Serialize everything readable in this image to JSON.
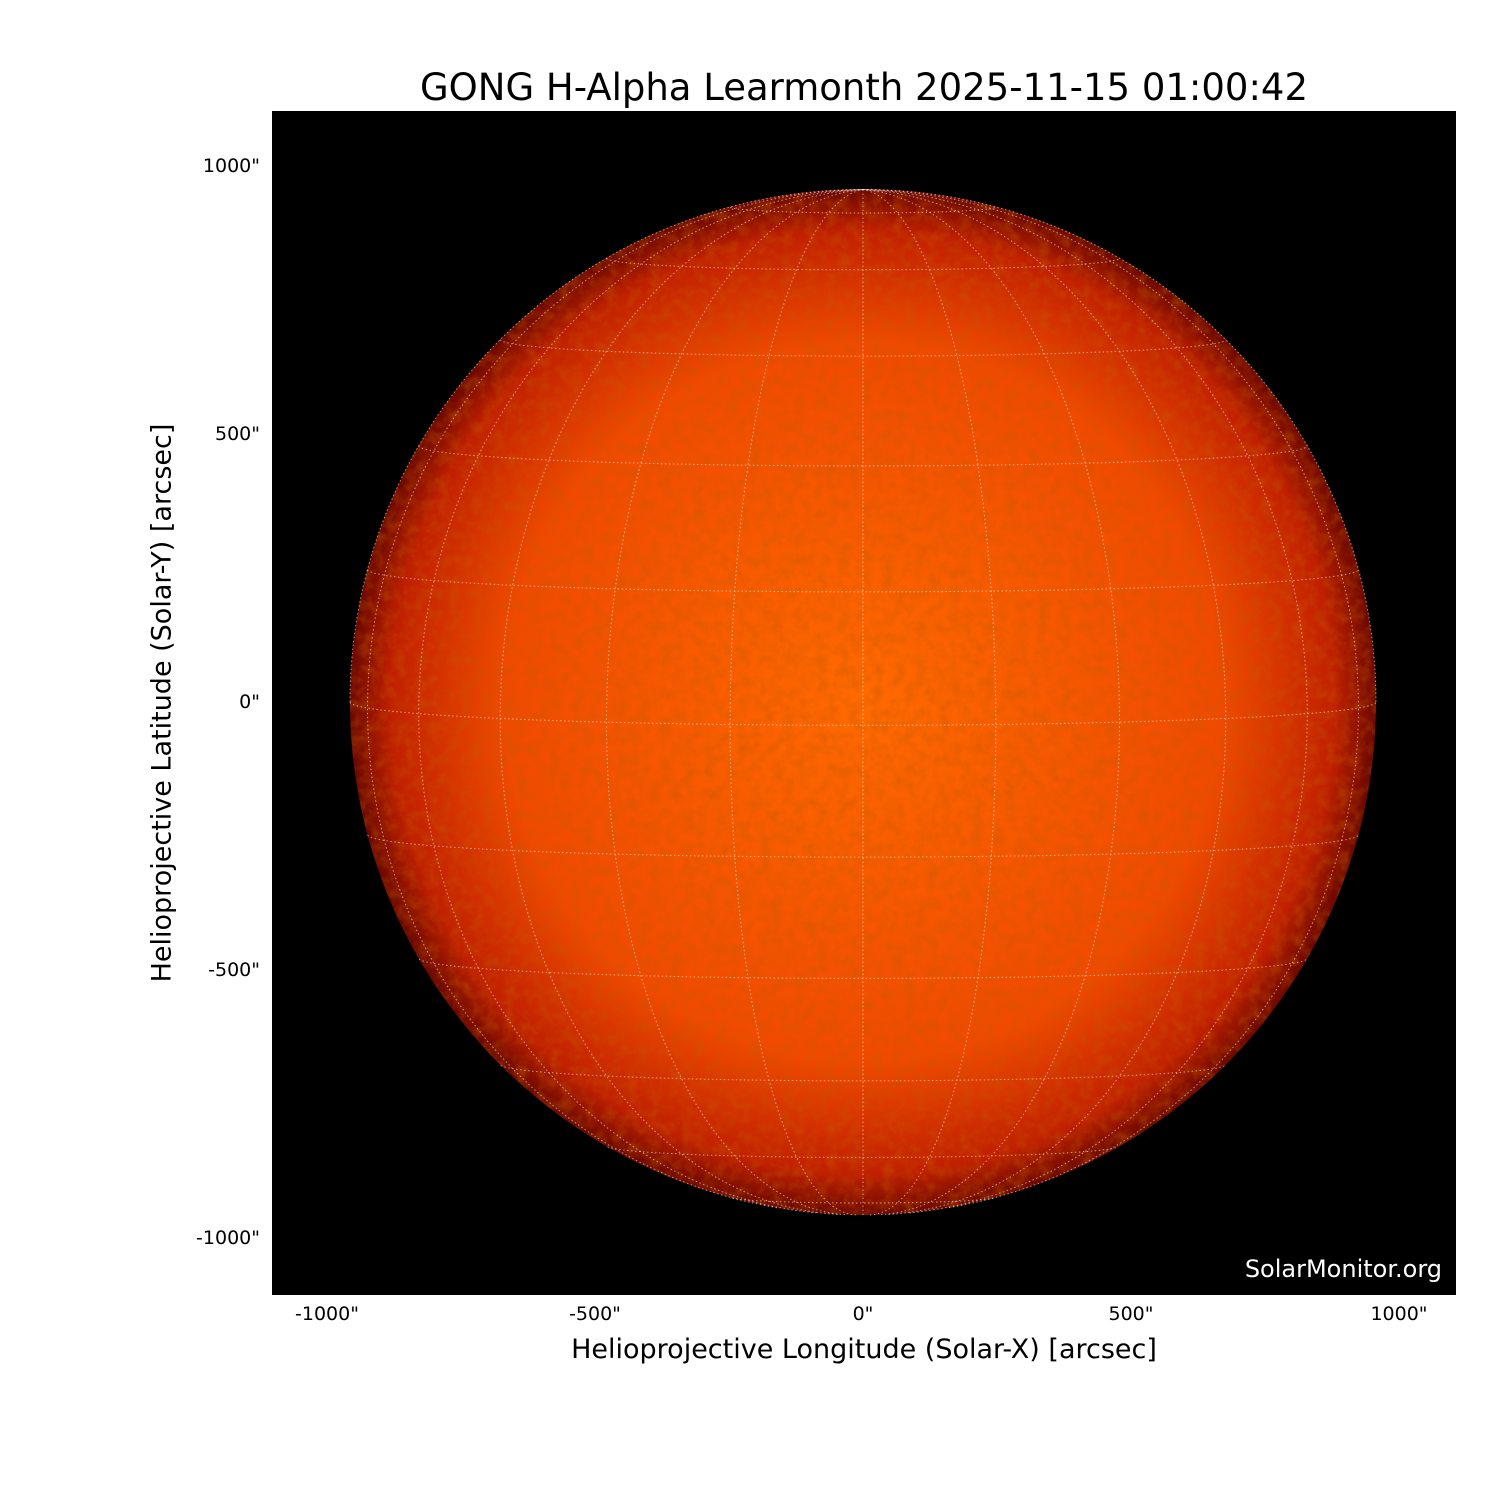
{
  "title": "GONG H-Alpha Learmonth 2025-11-15 01:00:42",
  "xaxis": {
    "label": "Helioprojective Longitude (Solar-X) [arcsec]",
    "ticks": [
      "-1000\"",
      "-500\"",
      "0\"",
      "500\"",
      "1000\""
    ],
    "tick_values": [
      -1000,
      -500,
      0,
      500,
      1000
    ],
    "range": [
      -1100,
      1100
    ]
  },
  "yaxis": {
    "label": "Helioprojective Latitude (Solar-Y) [arcsec]",
    "ticks": [
      "1000\"",
      "500\"",
      "0\"",
      "-500\"",
      "-1000\""
    ],
    "tick_values": [
      1000,
      500,
      0,
      -500,
      -1000
    ],
    "range": [
      -1100,
      1100
    ]
  },
  "watermark": "SolarMonitor.org",
  "colors": {
    "background": "#000000",
    "disk_center": "#ff6a00",
    "disk_limb": "#8a0c00",
    "grid": "#ffffff"
  },
  "grid": {
    "spacing_deg": 15,
    "style": "dotted"
  }
}
